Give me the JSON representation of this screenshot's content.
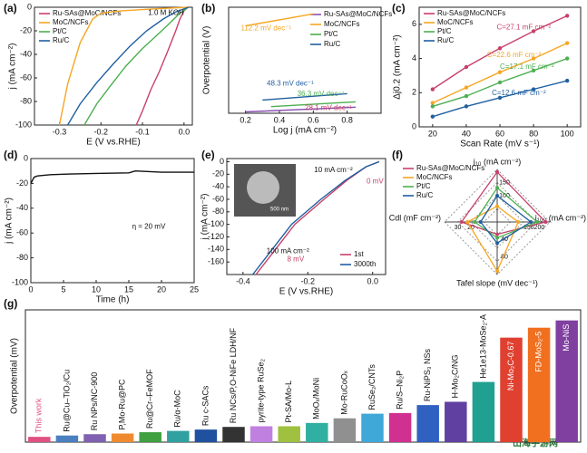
{
  "chart_data": [
    {
      "type": "line",
      "panel": "(a)",
      "x_label": "E (V vs.RHE)",
      "y_label": "j (mA cm⁻²)",
      "annotations": [
        "1.0 M KOH"
      ],
      "xlim": [
        -0.36,
        0.02
      ],
      "xticks": [
        -0.3,
        -0.2,
        -0.1,
        {
          "value": 0,
          "label": "0.0"
        }
      ],
      "ylim": [
        -100,
        0
      ],
      "yticks": [
        -100,
        -80,
        -60,
        -40,
        -20,
        0
      ],
      "legend": "top-left",
      "series": [
        {
          "name": "Ru-SAs@MoC/NCFs",
          "color": "#c8406a",
          "x": [
            0.01,
            0,
            -0.01,
            -0.02,
            -0.04,
            -0.06,
            -0.08,
            -0.1,
            -0.115
          ],
          "values": [
            0,
            -3,
            -10,
            -20,
            -38,
            -55,
            -70,
            -88,
            -100
          ]
        },
        {
          "name": "MoC/NCFs",
          "color": "#f5a623",
          "x": [
            0.01,
            -0.05,
            -0.1,
            -0.15,
            -0.2,
            -0.22,
            -0.25,
            -0.28,
            -0.3
          ],
          "values": [
            0,
            -1,
            -2,
            -3,
            -5,
            -10,
            -30,
            -65,
            -100
          ]
        },
        {
          "name": "Pt/C",
          "color": "#4caf50",
          "x": [
            0.01,
            -0.01,
            -0.03,
            -0.06,
            -0.1,
            -0.14,
            -0.18,
            -0.21,
            -0.24
          ],
          "values": [
            0,
            -5,
            -12,
            -22,
            -35,
            -50,
            -68,
            -82,
            -100
          ]
        },
        {
          "name": "Ru/C",
          "color": "#1f5fa0",
          "x": [
            0.01,
            -0.02,
            -0.05,
            -0.09,
            -0.13,
            -0.17,
            -0.21,
            -0.25,
            -0.28
          ],
          "values": [
            0,
            -4,
            -10,
            -20,
            -33,
            -48,
            -64,
            -82,
            -100
          ]
        }
      ]
    },
    {
      "type": "line",
      "panel": "(b)",
      "x_label": "Log j (mA cm⁻²)",
      "y_label": "Overpotential (V)",
      "annotations": [
        "112.2 mV dec⁻¹",
        "48.3 mV dec⁻¹",
        "36.3 mV dec⁻¹",
        "28.1 mV dec⁻¹"
      ],
      "xlim": [
        0.1,
        1.0
      ],
      "xticks": [
        0.2,
        0.4,
        0.6,
        0.8
      ],
      "ylim": [
        0,
        0.4
      ],
      "legend": "top-right",
      "series": [
        {
          "name": "Ru-SAs@MoC/NCFs",
          "color": "#8a4fb0",
          "x": [
            0.2,
            0.85
          ],
          "values": [
            0.005,
            0.023
          ]
        },
        {
          "name": "MoC/NCFs",
          "color": "#f5a623",
          "x": [
            0.2,
            0.6
          ],
          "values": [
            0.33,
            0.375
          ]
        },
        {
          "name": "Pt/C",
          "color": "#4caf50",
          "x": [
            0.35,
            0.85
          ],
          "values": [
            0.025,
            0.043
          ]
        },
        {
          "name": "Ru/C",
          "color": "#1f5fa0",
          "x": [
            0.3,
            0.8
          ],
          "values": [
            0.05,
            0.074
          ]
        }
      ]
    },
    {
      "type": "line",
      "markers": true,
      "panel": "(c)",
      "x_label": "Scan Rate (mV s⁻¹)",
      "y_label": "Δj0.2 (mA cm⁻²)",
      "annotations": [
        "C=27.1 mF cm⁻²",
        "C=22.6 mF cm⁻²",
        "C=17.1 mF cm⁻²",
        "C=12.6 mF cm⁻²"
      ],
      "xlim": [
        12,
        108
      ],
      "xticks": [
        20,
        40,
        60,
        80,
        100
      ],
      "ylim": [
        0,
        7
      ],
      "yticks": [
        0,
        2,
        4,
        6
      ],
      "legend": "top-left",
      "series": [
        {
          "name": "Ru-SAs@MoC/NCFs",
          "color": "#c8406a",
          "x": [
            20,
            40,
            60,
            80,
            100
          ],
          "values": [
            2.2,
            3.5,
            4.6,
            5.6,
            6.5
          ]
        },
        {
          "name": "MoC/NCFs",
          "color": "#f5a623",
          "x": [
            20,
            40,
            60,
            80,
            100
          ],
          "values": [
            1.4,
            2.3,
            3.2,
            4.0,
            4.9
          ]
        },
        {
          "name": "Pt/C",
          "color": "#4caf50",
          "x": [
            20,
            40,
            60,
            80,
            100
          ],
          "values": [
            1.2,
            1.8,
            2.6,
            3.3,
            4.0
          ]
        },
        {
          "name": "Ru/C",
          "color": "#1f5fa0",
          "x": [
            20,
            40,
            60,
            80,
            100
          ],
          "values": [
            0.6,
            1.2,
            1.7,
            2.2,
            2.7
          ]
        }
      ]
    },
    {
      "type": "line",
      "panel": "(d)",
      "x_label": "Time (h)",
      "y_label": "j (mA cm⁻²)",
      "annotations": [
        "η = 20 mV"
      ],
      "xlim": [
        0,
        25
      ],
      "xticks": [
        0,
        5,
        10,
        15,
        20,
        25
      ],
      "ylim": [
        -100,
        0
      ],
      "yticks": [
        -100,
        -80,
        -60,
        -40,
        -20,
        0
      ],
      "series": [
        {
          "color": "#111111",
          "x": [
            0,
            0.5,
            1,
            3,
            6,
            10,
            15,
            16,
            20,
            24,
            25
          ],
          "values": [
            -20,
            -15,
            -14,
            -13,
            -12.5,
            -12,
            -11.5,
            -10,
            -11,
            -11,
            -11
          ]
        }
      ]
    },
    {
      "type": "line",
      "panel": "(e)",
      "x_label": "E (V vs.RHE)",
      "y_label": "j (mA cm⁻²)",
      "annotations": [
        "10 mA cm⁻²",
        "0 mV",
        "100 mA cm⁻²",
        "8 mV"
      ],
      "inset_scale": "500 nm",
      "xlim": [
        -0.45,
        0.04
      ],
      "xticks": [
        -0.4,
        -0.2,
        {
          "value": 0,
          "label": "0.0"
        }
      ],
      "ylim": [
        -180,
        5
      ],
      "yticks": [
        -160,
        -140,
        -120,
        -100,
        -80,
        -60,
        -40,
        -20,
        0
      ],
      "legend": "bottom-right",
      "series": [
        {
          "name": "1st",
          "color": "#c8406a",
          "x": [
            -0.36,
            -0.3,
            -0.24,
            -0.15,
            -0.08,
            -0.02,
            0.02
          ],
          "values": [
            -180,
            -140,
            -100,
            -60,
            -30,
            -8,
            0
          ]
        },
        {
          "name": "3000th",
          "color": "#1f5fa0",
          "x": [
            -0.37,
            -0.31,
            -0.25,
            -0.16,
            -0.085,
            -0.02,
            0.02
          ],
          "values": [
            -180,
            -140,
            -100,
            -60,
            -30,
            -8,
            0
          ]
        }
      ]
    },
    {
      "type": "radar",
      "panel": "(f)",
      "axes": [
        {
          "label": "j₁₀ (mA cm⁻²)",
          "lim": [
            0,
            200
          ],
          "ticks": [
            100,
            150
          ]
        },
        {
          "label": "j₁₀₀ (mA cm⁻²)",
          "lim": [
            0,
            250
          ],
          "ticks": [
            150,
            200
          ]
        },
        {
          "label": "Tafel slope (mV dec⁻¹)",
          "lim": [
            0,
            120
          ],
          "ticks": [
            40,
            80
          ]
        },
        {
          "label": "Cdl (mF cm⁻²)",
          "lim": [
            0,
            40
          ],
          "ticks": [
            20,
            30
          ]
        }
      ],
      "series": [
        {
          "name": "Ru-SAs@MoC/NCFs",
          "color": "#c8406a",
          "values": [
            190,
            230,
            28.1,
            27.1
          ]
        },
        {
          "name": "MoC/NCFs",
          "color": "#f5a623",
          "values": [
            60,
            100,
            112.2,
            22.6
          ]
        },
        {
          "name": "Pt/C",
          "color": "#4caf50",
          "values": [
            130,
            190,
            36.3,
            17.1
          ]
        },
        {
          "name": "Ru/C",
          "color": "#1f5fa0",
          "values": [
            100,
            160,
            48.3,
            12.6
          ]
        }
      ]
    },
    {
      "type": "bar",
      "panel": "(g)",
      "y_label": "Overpotential (mV)",
      "ylim": [
        0,
        200
      ],
      "categories": [
        "This work",
        "Ru@Cu–TiO₂/Cu",
        "Ru NPs/NC-900",
        "P,Mo-Ru@PC",
        "Ru@Cr–FeMOF",
        "Ru/α-MoC",
        "Ru c-SACs",
        "Ru NCs/P,O-NiFe LDH/NF",
        "pyrite-type RuSe₂",
        "Pt-SA/Mo-L",
        "MoOₓ/MoNi",
        "Mo-RuCoOₓ",
        "RuSe₂/CNTs",
        "Ru/S–Ni₂P",
        "Ru-NiPS₃ NSs",
        "H-Mo₂C/NG",
        "He1e13-MoSe₂-A",
        "Ni-Mo₂C-0.67",
        "FD-MoS₂-5",
        "Mo-NiS"
      ],
      "values": [
        8,
        10,
        12,
        13,
        15,
        17,
        19,
        23,
        24,
        24,
        29,
        36,
        43,
        44,
        56,
        61,
        91,
        158,
        173,
        184
      ],
      "colors": [
        "#e05080",
        "#4a7fc0",
        "#8060b0",
        "#f08a30",
        "#40a040",
        "#30a0a0",
        "#2050a0",
        "#333333",
        "#c080e0",
        "#a0c040",
        "#30b0a0",
        "#909090",
        "#40a8d8",
        "#d03090",
        "#3060c0",
        "#6040a0",
        "#20a090",
        "#e04030",
        "#f07020",
        "#8040a0"
      ]
    }
  ],
  "watermark": "山海手游网"
}
